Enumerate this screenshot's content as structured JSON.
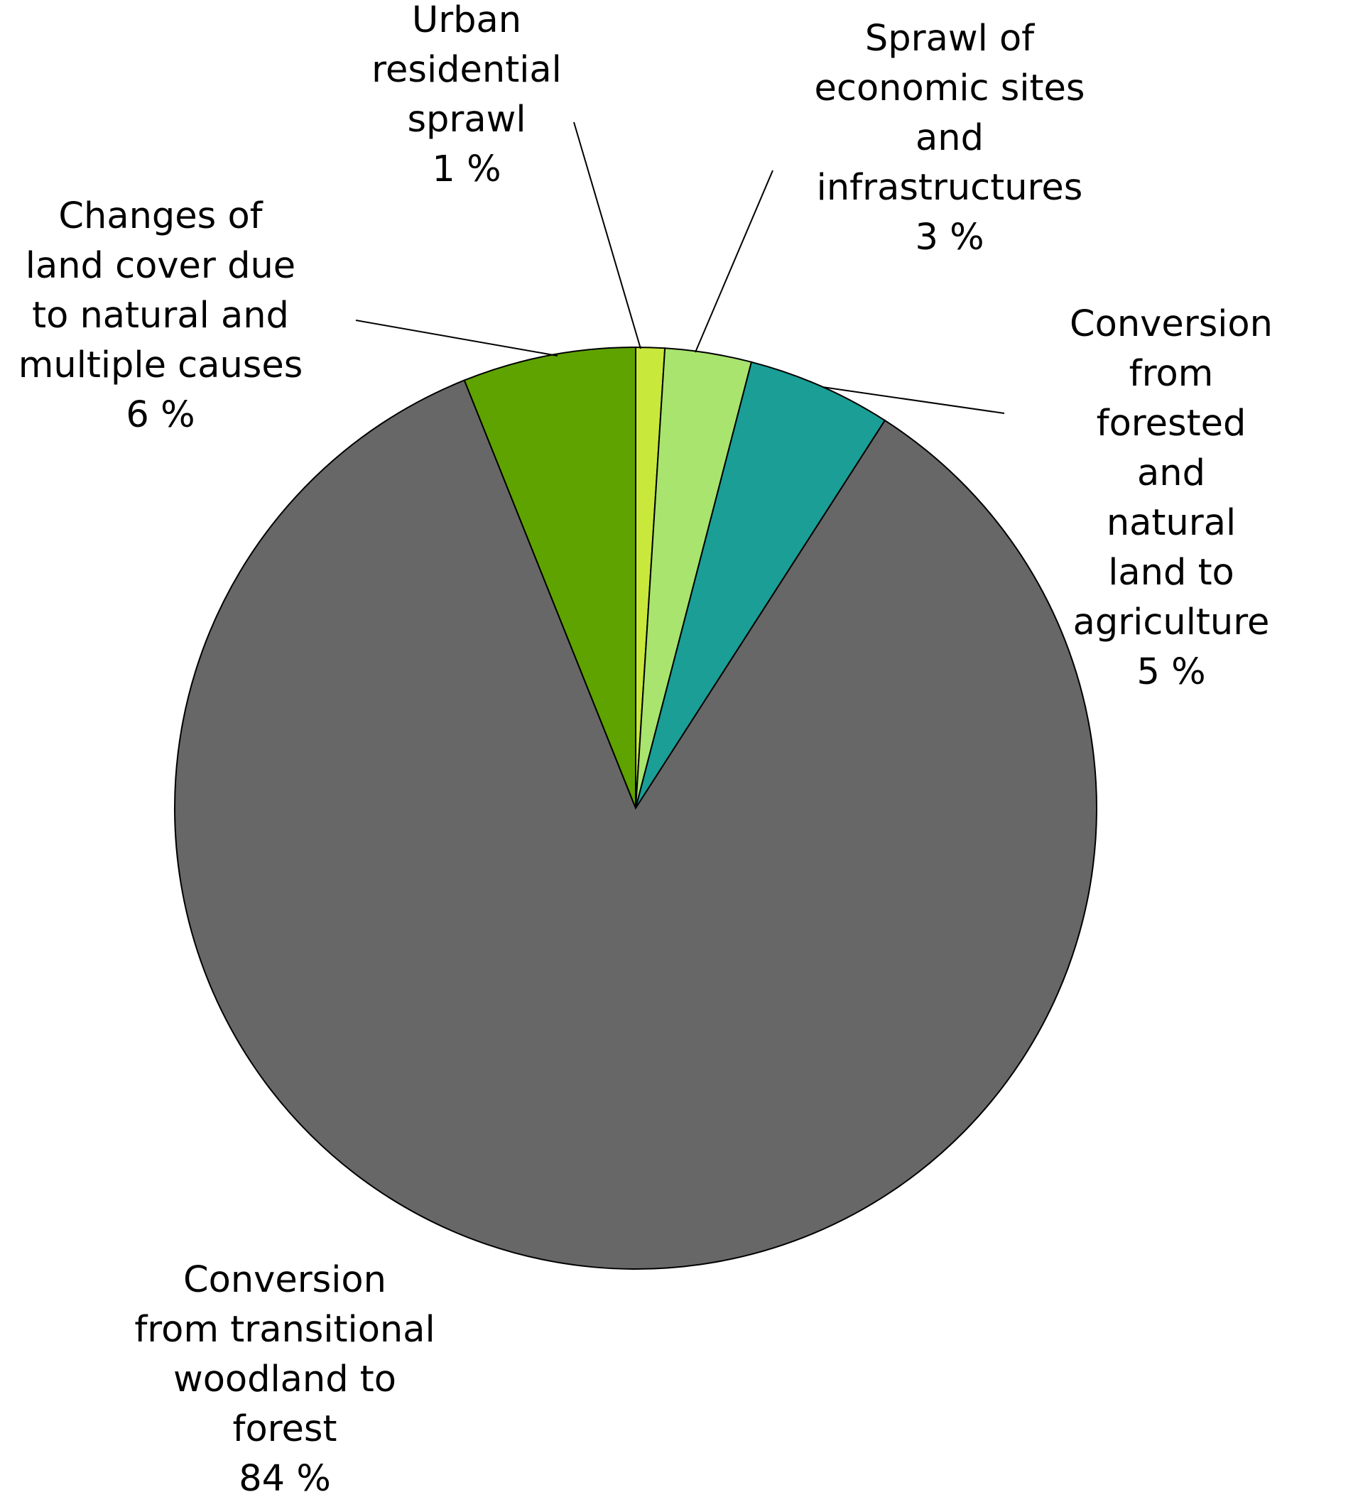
{
  "chart_data": {
    "type": "pie",
    "categories": [
      "Urban\nresidential\nsprawl",
      "Sprawl of\neconomic sites\nand\ninfrastructures",
      "Conversion\nfrom forested and\nnatural land to\nagriculture",
      "Conversion\nfrom transitional\nwoodland to\nforest",
      "Changes of\nland cover due\nto natural and\nmultiple causes"
    ],
    "values": [
      1,
      3,
      5,
      84,
      6
    ],
    "value_labels": [
      "1 %",
      "3 %",
      "5 %",
      "84 %",
      "6 %"
    ],
    "colors": [
      "#c9e83c",
      "#a9e46e",
      "#1a9e96",
      "#676767",
      "#5fa300"
    ]
  }
}
